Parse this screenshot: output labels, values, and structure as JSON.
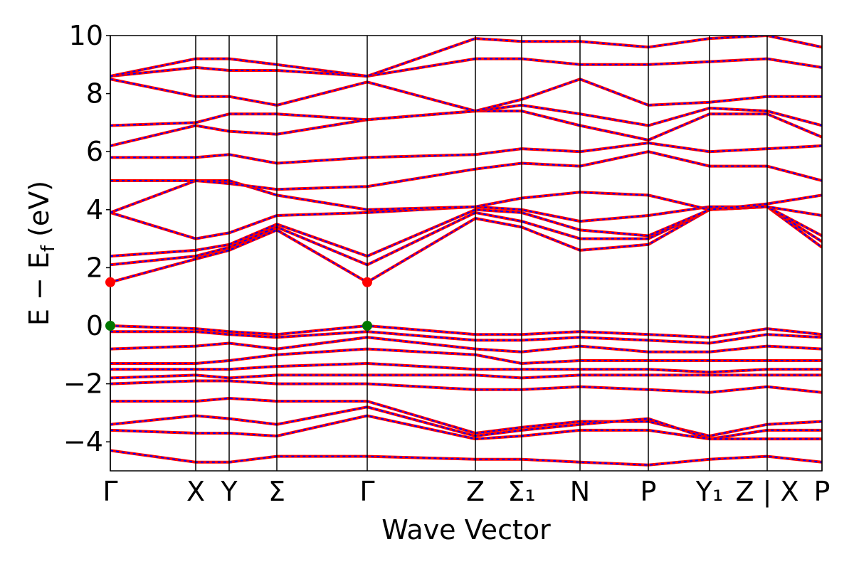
{
  "chart_data": {
    "type": "line",
    "xlabel": "Wave Vector",
    "ylabel": [
      "E − E",
      "f",
      " (eV)"
    ],
    "x": [
      0,
      120,
      167,
      234,
      361,
      513,
      578,
      660,
      756,
      842,
      923,
      1000
    ],
    "xlim": [
      0,
      1000
    ],
    "xticks": [
      {
        "value": 0,
        "label": "Γ"
      },
      {
        "value": 120,
        "label": "X"
      },
      {
        "value": 167,
        "label": "Y"
      },
      {
        "value": 234,
        "label": "Σ"
      },
      {
        "value": 361,
        "label": "Γ"
      },
      {
        "value": 513,
        "label": "Z"
      },
      {
        "value": 578,
        "label": "Σ₁"
      },
      {
        "value": 660,
        "label": "N"
      },
      {
        "value": 756,
        "label": "P"
      },
      {
        "value": 842,
        "label": "Y₁"
      },
      {
        "value": 923,
        "label": "Z | X"
      },
      {
        "value": 1000,
        "label": "P"
      }
    ],
    "ylim": [
      -5,
      10
    ],
    "yticks": [
      {
        "value": -4,
        "label": "−4"
      },
      {
        "value": -2,
        "label": "−2"
      },
      0,
      2,
      4,
      6,
      8,
      10
    ],
    "line_color": "#ff0000",
    "overlay_color": "#0000ff",
    "vertical_lines": true,
    "series": [
      {
        "values": [
          0,
          -0.1,
          -0.2,
          -0.3,
          0,
          -0.3,
          -0.3,
          -0.2,
          -0.3,
          -0.4,
          -0.1,
          -0.3
        ]
      },
      {
        "values": [
          -0.2,
          -0.2,
          -0.3,
          -0.4,
          -0.2,
          -0.5,
          -0.5,
          -0.4,
          -0.5,
          -0.6,
          -0.3,
          -0.4
        ]
      },
      {
        "values": [
          -0.8,
          -0.7,
          -0.6,
          -0.8,
          -0.4,
          -0.8,
          -0.9,
          -0.7,
          -0.9,
          -0.9,
          -0.7,
          -0.8
        ]
      },
      {
        "values": [
          -1.3,
          -1.3,
          -1.2,
          -1.0,
          -0.8,
          -1.0,
          -1.3,
          -1.2,
          -1.2,
          -1.2,
          -1.2,
          -1.2
        ]
      },
      {
        "values": [
          -1.5,
          -1.5,
          -1.5,
          -1.4,
          -1.3,
          -1.5,
          -1.5,
          -1.5,
          -1.5,
          -1.6,
          -1.5,
          -1.5
        ]
      },
      {
        "values": [
          -1.8,
          -1.7,
          -1.8,
          -1.7,
          -1.7,
          -1.7,
          -1.8,
          -1.7,
          -1.7,
          -1.7,
          -1.7,
          -1.7
        ]
      },
      {
        "values": [
          -2.0,
          -1.9,
          -1.9,
          -2.0,
          -2.0,
          -2.2,
          -2.2,
          -2.1,
          -2.2,
          -2.3,
          -2.1,
          -2.3
        ]
      },
      {
        "values": [
          -2.6,
          -2.6,
          -2.5,
          -2.6,
          -2.6,
          -3.7,
          -3.5,
          -3.3,
          -3.3,
          -3.8,
          -3.4,
          -3.3
        ]
      },
      {
        "values": [
          -3.4,
          -3.1,
          -3.2,
          -3.4,
          -2.8,
          -3.8,
          -3.6,
          -3.4,
          -3.2,
          -3.9,
          -3.6,
          -3.6
        ]
      },
      {
        "values": [
          -3.6,
          -3.7,
          -3.7,
          -3.8,
          -3.1,
          -3.9,
          -3.8,
          -3.6,
          -3.6,
          -3.9,
          -3.9,
          -3.9
        ]
      },
      {
        "values": [
          -4.3,
          -4.7,
          -4.7,
          -4.5,
          -4.5,
          -4.6,
          -4.6,
          -4.7,
          -4.8,
          -4.6,
          -4.5,
          -4.7
        ]
      },
      {
        "values": [
          1.5,
          2.3,
          2.6,
          3.3,
          1.5,
          3.7,
          3.4,
          2.6,
          2.8,
          4.0,
          4.1,
          2.7
        ]
      },
      {
        "values": [
          2.1,
          2.4,
          2.7,
          3.4,
          2.1,
          3.9,
          3.6,
          3.0,
          3.0,
          4.0,
          4.1,
          2.9
        ]
      },
      {
        "values": [
          2.4,
          2.6,
          2.8,
          3.5,
          2.4,
          4.0,
          3.9,
          3.3,
          3.1,
          4.0,
          4.1,
          3.1
        ]
      },
      {
        "values": [
          3.9,
          3.0,
          3.2,
          3.8,
          3.9,
          4.1,
          4.0,
          3.6,
          3.8,
          4.1,
          4.1,
          3.8
        ]
      },
      {
        "values": [
          3.9,
          5.0,
          5.0,
          4.5,
          4.0,
          4.1,
          4.4,
          4.6,
          4.5,
          4.0,
          4.2,
          4.5
        ]
      },
      {
        "values": [
          5.0,
          5.0,
          4.9,
          4.7,
          4.8,
          5.4,
          5.6,
          5.5,
          6.0,
          5.5,
          5.5,
          5.0
        ]
      },
      {
        "values": [
          5.8,
          5.8,
          5.9,
          5.6,
          5.8,
          5.9,
          6.1,
          6.0,
          6.3,
          6.0,
          6.1,
          6.2
        ]
      },
      {
        "values": [
          6.2,
          6.9,
          6.7,
          6.6,
          7.1,
          7.4,
          7.4,
          6.9,
          6.4,
          7.3,
          7.3,
          6.5
        ]
      },
      {
        "values": [
          6.9,
          7.0,
          7.3,
          7.3,
          7.1,
          7.4,
          7.6,
          7.3,
          6.9,
          7.5,
          7.4,
          6.9
        ]
      },
      {
        "values": [
          8.5,
          7.9,
          7.9,
          7.6,
          8.4,
          7.4,
          7.8,
          8.5,
          7.6,
          7.7,
          7.9,
          7.9
        ]
      },
      {
        "values": [
          8.6,
          8.9,
          8.8,
          8.8,
          8.6,
          9.2,
          9.2,
          9.0,
          9.0,
          9.1,
          9.2,
          8.9
        ]
      },
      {
        "values": [
          8.6,
          9.2,
          9.2,
          9.0,
          8.6,
          9.9,
          9.8,
          9.8,
          9.6,
          9.9,
          10.0,
          9.6
        ]
      }
    ],
    "markers": [
      {
        "x": 0,
        "y": 1.5,
        "color": "#ff0000"
      },
      {
        "x": 361,
        "y": 1.5,
        "color": "#ff0000"
      },
      {
        "x": 0,
        "y": 0,
        "color": "#007700"
      },
      {
        "x": 361,
        "y": 0,
        "color": "#007700"
      }
    ]
  }
}
